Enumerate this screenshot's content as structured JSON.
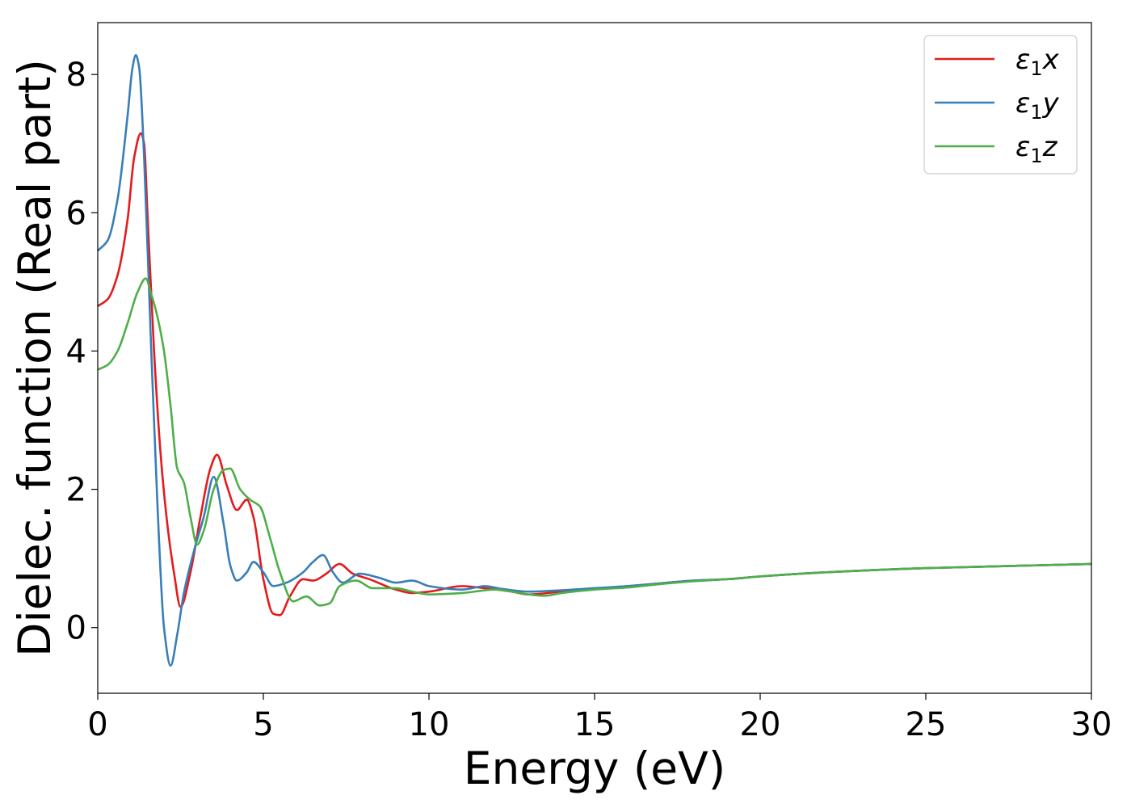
{
  "chart_data": {
    "type": "line",
    "xlabel": "Energy (eV)",
    "ylabel": "Dielec. function (Real part)",
    "xlim": [
      0,
      30
    ],
    "ylim": [
      -0.95,
      8.75
    ],
    "xticks": [
      0,
      5,
      10,
      15,
      20,
      25,
      30
    ],
    "yticks": [
      0,
      2,
      4,
      6,
      8
    ],
    "xtick_labels": [
      "0",
      "5",
      "10",
      "15",
      "20",
      "25",
      "30"
    ],
    "ytick_labels": [
      "0",
      "2",
      "4",
      "6",
      "8"
    ],
    "grid": false,
    "legend_position": "top-right",
    "series": [
      {
        "name": "ε1x",
        "legend_base": "ε",
        "legend_sub": "1",
        "legend_suffix": "x",
        "color": "#e41a1c",
        "x": [
          0,
          0.3,
          0.6,
          0.9,
          1.1,
          1.3,
          1.4,
          1.5,
          1.7,
          1.9,
          2.1,
          2.3,
          2.5,
          2.8,
          3.1,
          3.4,
          3.6,
          3.9,
          4.2,
          4.5,
          4.7,
          5.0,
          5.3,
          5.5,
          5.8,
          6.2,
          6.5,
          6.9,
          7.3,
          7.7,
          8.2,
          9.0,
          9.5,
          10,
          11,
          11.5,
          12.5,
          13,
          14,
          15,
          16,
          17,
          18,
          19,
          20,
          22,
          25,
          30
        ],
        "y": [
          4.65,
          4.75,
          5.1,
          5.9,
          6.8,
          7.15,
          7.0,
          6.0,
          4.0,
          2.5,
          1.5,
          0.8,
          0.3,
          0.8,
          1.6,
          2.3,
          2.5,
          2.05,
          1.7,
          1.85,
          1.6,
          0.7,
          0.2,
          0.18,
          0.45,
          0.7,
          0.68,
          0.78,
          0.92,
          0.78,
          0.7,
          0.55,
          0.5,
          0.52,
          0.6,
          0.58,
          0.52,
          0.48,
          0.52,
          0.56,
          0.6,
          0.64,
          0.68,
          0.7,
          0.74,
          0.8,
          0.86,
          0.92
        ]
      },
      {
        "name": "ε1y",
        "legend_base": "ε",
        "legend_sub": "1",
        "legend_suffix": "y",
        "color": "#377eb8",
        "x": [
          0,
          0.3,
          0.6,
          0.9,
          1.05,
          1.15,
          1.25,
          1.4,
          1.6,
          1.8,
          2.0,
          2.2,
          2.4,
          2.6,
          2.9,
          3.2,
          3.5,
          3.8,
          4.0,
          4.2,
          4.5,
          4.7,
          5.0,
          5.3,
          5.7,
          6.2,
          6.5,
          6.8,
          7.1,
          7.4,
          7.9,
          8.5,
          9.0,
          9.5,
          10,
          11,
          11.7,
          12.2,
          13,
          14,
          15,
          16,
          17,
          18,
          19,
          20,
          22,
          25,
          30
        ],
        "y": [
          5.45,
          5.6,
          6.2,
          7.4,
          8.1,
          8.28,
          8.1,
          6.8,
          4.2,
          1.8,
          0.0,
          -0.55,
          -0.1,
          0.5,
          1.1,
          1.6,
          2.18,
          1.5,
          0.9,
          0.68,
          0.8,
          0.95,
          0.8,
          0.6,
          0.65,
          0.8,
          0.95,
          1.05,
          0.8,
          0.65,
          0.78,
          0.72,
          0.65,
          0.68,
          0.6,
          0.55,
          0.6,
          0.56,
          0.52,
          0.54,
          0.57,
          0.6,
          0.64,
          0.68,
          0.7,
          0.74,
          0.8,
          0.86,
          0.92
        ]
      },
      {
        "name": "ε1z",
        "legend_base": "ε",
        "legend_sub": "1",
        "legend_suffix": "z",
        "color": "#4daf4a",
        "x": [
          0,
          0.3,
          0.6,
          0.9,
          1.2,
          1.45,
          1.6,
          1.8,
          2.0,
          2.2,
          2.4,
          2.6,
          2.8,
          3.0,
          3.2,
          3.5,
          3.8,
          4.0,
          4.3,
          4.6,
          4.9,
          5.2,
          5.5,
          5.9,
          6.3,
          6.7,
          7.0,
          7.3,
          7.8,
          8.3,
          9.0,
          9.5,
          10,
          11,
          12,
          12.5,
          13,
          13.5,
          14,
          15,
          16,
          17,
          18,
          19,
          20,
          22,
          25,
          30
        ],
        "y": [
          3.73,
          3.8,
          4.0,
          4.4,
          4.85,
          5.05,
          4.85,
          4.5,
          4.0,
          3.2,
          2.3,
          2.1,
          1.6,
          1.2,
          1.4,
          2.0,
          2.28,
          2.3,
          2.0,
          1.85,
          1.75,
          1.3,
          0.8,
          0.38,
          0.45,
          0.32,
          0.35,
          0.6,
          0.68,
          0.57,
          0.57,
          0.52,
          0.48,
          0.5,
          0.55,
          0.52,
          0.48,
          0.46,
          0.5,
          0.55,
          0.58,
          0.63,
          0.67,
          0.7,
          0.74,
          0.8,
          0.86,
          0.92
        ]
      }
    ]
  }
}
